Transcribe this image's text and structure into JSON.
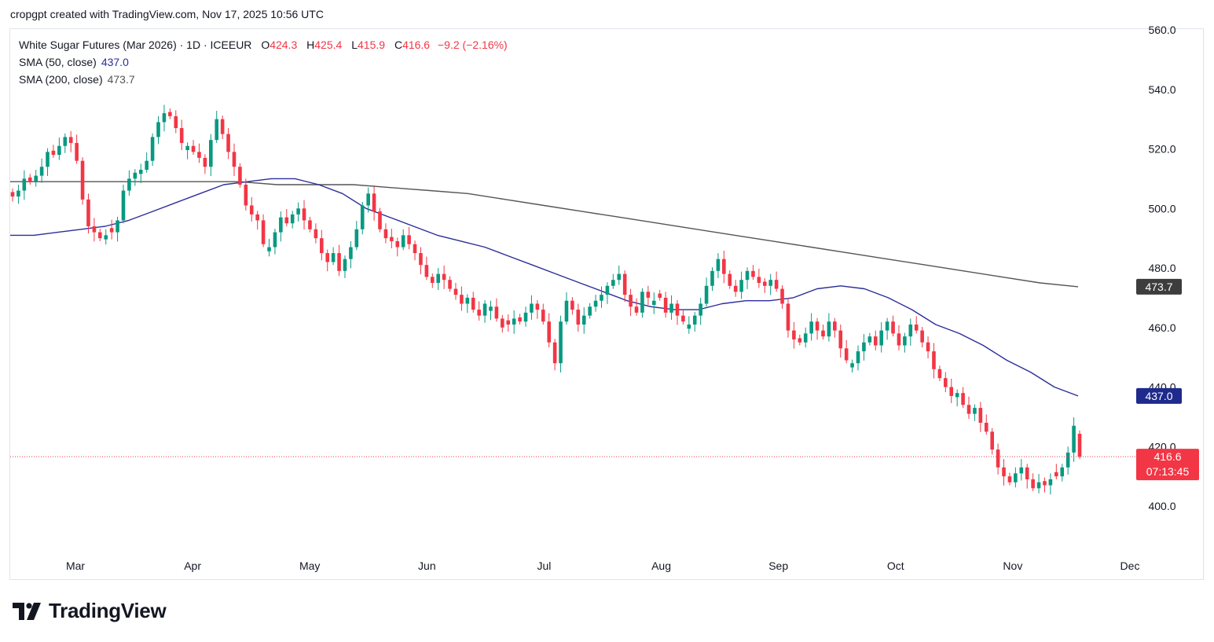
{
  "header": {
    "credit": "cropgpt created with TradingView.com, Nov 17, 2025 10:56 UTC"
  },
  "legend": {
    "symbol": "White Sugar Futures (Mar 2026) · 1D · ICEEUR",
    "open_label": "O",
    "open": "424.3",
    "high_label": "H",
    "high": "425.4",
    "low_label": "L",
    "low": "415.9",
    "close_label": "C",
    "close": "416.6",
    "change": "−9.2 (−2.16%)",
    "sma50_label": "SMA (50, close)",
    "sma50_value": "437.0",
    "sma200_label": "SMA (200, close)",
    "sma200_value": "473.7"
  },
  "footer": {
    "brand": "TradingView"
  },
  "colors": {
    "up": "#089981",
    "down": "#f23645",
    "sma50": "#2a2e99",
    "sma200": "#555555",
    "price_line": "#f23645"
  },
  "chart_data": {
    "type": "candlestick",
    "title": "White Sugar Futures (Mar 2026) · 1D · ICEEUR",
    "ylim": [
      395,
      560
    ],
    "y_ticks": [
      400,
      420,
      440,
      460,
      480,
      500,
      520,
      540,
      560
    ],
    "y_tick_labels": [
      "400.0",
      "420.0",
      "440.0",
      "460.0",
      "480.0",
      "500.0",
      "520.0",
      "540.0",
      "560.0"
    ],
    "x_tick_labels": [
      "Mar",
      "Apr",
      "May",
      "Jun",
      "Jul",
      "Aug",
      "Sep",
      "Oct",
      "Nov",
      "Dec"
    ],
    "last_price_label": "416.6",
    "countdown_label": "07:13:45",
    "sma50_label_value": "437.0",
    "sma200_label_value": "473.7",
    "grid": false,
    "closes": [
      504,
      506,
      510,
      509,
      511,
      514,
      519,
      518,
      521,
      524,
      522,
      516,
      503,
      494,
      492,
      490,
      491,
      492,
      496,
      506,
      510,
      512,
      513,
      516,
      524,
      529,
      532,
      531,
      527,
      522,
      521,
      519,
      517,
      514,
      523,
      530,
      525,
      519,
      514,
      508,
      501,
      498,
      496,
      488,
      487,
      492,
      497,
      495,
      498,
      500,
      496,
      493,
      490,
      485,
      482,
      485,
      479,
      483,
      487,
      493,
      501,
      505,
      499,
      493,
      490,
      489,
      487,
      491,
      488,
      485,
      481,
      477,
      475,
      478,
      476,
      473,
      471,
      468,
      470,
      466,
      464,
      468,
      467,
      463,
      460,
      461,
      463,
      462,
      465,
      468,
      466,
      462,
      455,
      448,
      462,
      469,
      466,
      461,
      464,
      467,
      469,
      471,
      474,
      476,
      478,
      471,
      467,
      465,
      472,
      470,
      469,
      470,
      465,
      468,
      464,
      462,
      461,
      464,
      468,
      474,
      479,
      483,
      478,
      474,
      472,
      476,
      479,
      477,
      475,
      474,
      476,
      473,
      468,
      459,
      456,
      455,
      458,
      462,
      459,
      457,
      462,
      459,
      453,
      449,
      448,
      452,
      455,
      457,
      454,
      459,
      462,
      458,
      454,
      457,
      461,
      459,
      455,
      452,
      446,
      443,
      440,
      437,
      438,
      434,
      431,
      433,
      428,
      425,
      419,
      413,
      410,
      408,
      411,
      413,
      409,
      406,
      408,
      407,
      409,
      410,
      413,
      418,
      427,
      416.6
    ],
    "sma50": [
      491,
      491,
      492,
      493,
      494,
      496,
      499,
      502,
      505,
      508,
      509,
      510,
      510,
      508,
      505,
      500,
      497,
      494,
      491,
      489,
      487,
      484,
      481,
      478,
      475,
      472,
      469,
      467,
      466,
      466,
      468,
      469,
      469,
      470,
      473,
      474,
      473,
      470,
      466,
      461,
      458,
      454,
      449,
      445,
      440,
      437
    ],
    "sma200": [
      509,
      509,
      509,
      509,
      509,
      509,
      509,
      508,
      508,
      508,
      507,
      506,
      505,
      503,
      501,
      499,
      497,
      495,
      493,
      491,
      489,
      487,
      485,
      483,
      481,
      479,
      477,
      475,
      473.7
    ]
  }
}
